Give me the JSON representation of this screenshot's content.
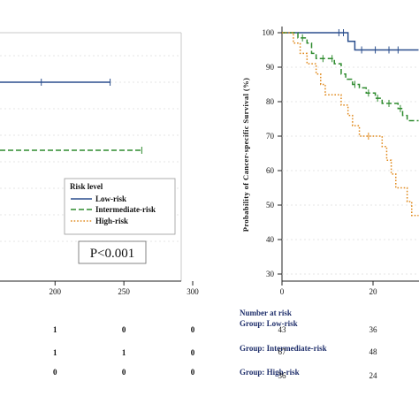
{
  "chart_data": [
    {
      "type": "line",
      "title": "",
      "xlabel": "",
      "ylabel": "",
      "x_ticks": [
        200,
        250,
        300
      ],
      "xlim": [
        160,
        300
      ],
      "legend": {
        "title": "Risk level",
        "placement": "bottom-right",
        "entries": [
          "Low-risk",
          "Intermediate-risk",
          "High-risk"
        ]
      },
      "series": [
        {
          "name": "Low-risk",
          "color": "#2b4f8e",
          "style": "solid",
          "points": [
            [
              160,
              100
            ],
            [
              240,
              100
            ]
          ],
          "censor_x": [
            190
          ]
        },
        {
          "name": "Intermediate-risk",
          "color": "#2e8b2e",
          "style": "dashed",
          "points": [
            [
              160,
              52
            ],
            [
              263,
              52
            ]
          ],
          "censor_x": []
        }
      ],
      "pvalue_text": "P<0.001",
      "risk_table": {
        "rows": [
          [
            "1",
            "0",
            "0"
          ],
          [
            "1",
            "1",
            "0"
          ],
          [
            "0",
            "0",
            "0"
          ]
        ]
      }
    },
    {
      "type": "line",
      "title": "",
      "xlabel": "",
      "ylabel": "Probability of Cancer-specific Survival (%)",
      "x_ticks": [
        0,
        20
      ],
      "xlim": [
        0,
        30
      ],
      "y_ticks": [
        30,
        40,
        50,
        60,
        70,
        80,
        90,
        100
      ],
      "ylim": [
        28,
        102
      ],
      "series": [
        {
          "name": "Low-risk",
          "color": "#2b4f8e",
          "style": "solid",
          "points": [
            [
              0,
              100
            ],
            [
              14.5,
              100
            ],
            [
              14.5,
              97.5
            ],
            [
              16,
              97.5
            ],
            [
              16,
              95
            ],
            [
              30,
              95
            ]
          ],
          "censor_x": [
            12.5,
            13.5,
            17.5,
            20.5,
            23.5,
            25.5
          ]
        },
        {
          "name": "Intermediate-risk",
          "color": "#2e8b2e",
          "style": "dashed",
          "points": [
            [
              0,
              100
            ],
            [
              3.5,
              100
            ],
            [
              3.5,
              98.5
            ],
            [
              5.5,
              98.5
            ],
            [
              5.5,
              97
            ],
            [
              6.5,
              97
            ],
            [
              6.5,
              94
            ],
            [
              7.5,
              94
            ],
            [
              7.5,
              92.5
            ],
            [
              11.5,
              92.5
            ],
            [
              11.5,
              91
            ],
            [
              13,
              91
            ],
            [
              13,
              88
            ],
            [
              14,
              88
            ],
            [
              14,
              86.5
            ],
            [
              15.5,
              86.5
            ],
            [
              15.5,
              85
            ],
            [
              17,
              85
            ],
            [
              17,
              84
            ],
            [
              18.5,
              84
            ],
            [
              18.5,
              82.5
            ],
            [
              20.5,
              82.5
            ],
            [
              20.5,
              81
            ],
            [
              22,
              81
            ],
            [
              22,
              79.5
            ],
            [
              25.5,
              79.5
            ],
            [
              25.5,
              78
            ],
            [
              26.5,
              78
            ],
            [
              26.5,
              76
            ],
            [
              27.5,
              76
            ],
            [
              27.5,
              74.5
            ],
            [
              30,
              74.5
            ]
          ],
          "censor_x": [
            4.5,
            9,
            11,
            16,
            19,
            21,
            23.5,
            26
          ]
        },
        {
          "name": "High-risk",
          "color": "#e08a1e",
          "style": "dotted",
          "points": [
            [
              0,
              100
            ],
            [
              2.5,
              100
            ],
            [
              2.5,
              97
            ],
            [
              4,
              97
            ],
            [
              4,
              94
            ],
            [
              5.5,
              94
            ],
            [
              5.5,
              91
            ],
            [
              7.5,
              91
            ],
            [
              7.5,
              88
            ],
            [
              8.5,
              88
            ],
            [
              8.5,
              85
            ],
            [
              9.5,
              85
            ],
            [
              9.5,
              82
            ],
            [
              13,
              82
            ],
            [
              13,
              79
            ],
            [
              14.5,
              79
            ],
            [
              14.5,
              76
            ],
            [
              15.5,
              76
            ],
            [
              15.5,
              73
            ],
            [
              17,
              73
            ],
            [
              17,
              70
            ],
            [
              22,
              70
            ],
            [
              22,
              67
            ],
            [
              23,
              67
            ],
            [
              23,
              63
            ],
            [
              24,
              63
            ],
            [
              24,
              59
            ],
            [
              25,
              59
            ],
            [
              25,
              55
            ],
            [
              27.5,
              55
            ],
            [
              27.5,
              51
            ],
            [
              28.5,
              51
            ],
            [
              28.5,
              47
            ],
            [
              30,
              47
            ]
          ],
          "censor_x": [
            19
          ]
        }
      ],
      "risk_table": {
        "title": "Number at risk",
        "groups": [
          {
            "label": "Group: Low-risk",
            "values": [
              "43",
              "36"
            ]
          },
          {
            "label": "Group: Intermediate-risk",
            "values": [
              "67",
              "48"
            ]
          },
          {
            "label": "Group: High-risk",
            "values": [
              "36",
              "24"
            ]
          }
        ]
      }
    }
  ]
}
